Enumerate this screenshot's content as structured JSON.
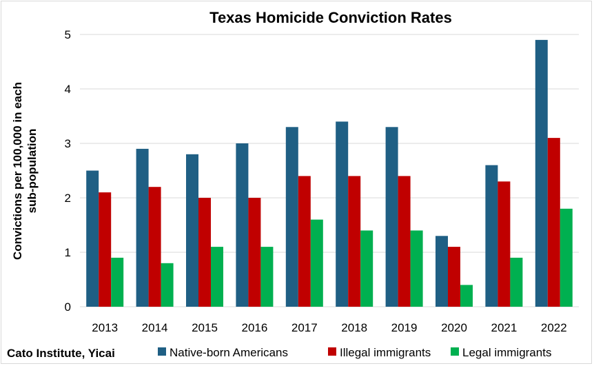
{
  "chart_data": {
    "type": "bar",
    "title": "Texas Homicide Conviction Rates",
    "xlabel": "",
    "ylabel_lines": [
      "Convictions per 100,000 in each",
      "sub-population"
    ],
    "ylim": [
      0,
      5
    ],
    "yticks": [
      0,
      1,
      2,
      3,
      4,
      5
    ],
    "grid": true,
    "legend_position": "bottom",
    "categories": [
      "2013",
      "2014",
      "2015",
      "2016",
      "2017",
      "2018",
      "2019",
      "2020",
      "2021",
      "2022"
    ],
    "series": [
      {
        "name": "Native-born Americans",
        "color": "#1f5f84",
        "values": [
          2.5,
          2.9,
          2.8,
          3.0,
          3.3,
          3.4,
          3.3,
          1.3,
          2.6,
          4.9
        ]
      },
      {
        "name": "Illegal immigrants",
        "color": "#c00000",
        "values": [
          2.1,
          2.2,
          2.0,
          2.0,
          2.4,
          2.4,
          2.4,
          1.1,
          2.3,
          3.1
        ]
      },
      {
        "name": "Legal immigrants",
        "color": "#00b050",
        "values": [
          0.9,
          0.8,
          1.1,
          1.1,
          1.6,
          1.4,
          1.4,
          0.4,
          0.9,
          1.8
        ]
      }
    ]
  },
  "credit": "Cato Institute, Yicai"
}
